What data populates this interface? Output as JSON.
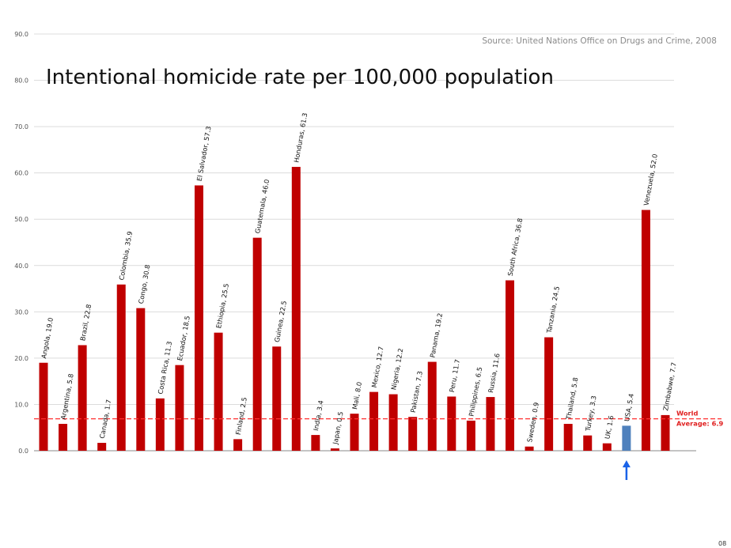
{
  "chart_data": {
    "type": "bar",
    "title": "Intentional homicide rate per 100,000 population",
    "source": "Source: United Nations Office on Drugs and Crime, 2008",
    "xlabel": "",
    "ylabel": "",
    "ylim": [
      0,
      90
    ],
    "yticks": [
      "0.0",
      "10.0",
      "20.0",
      "30.0",
      "40.0",
      "50.0",
      "60.0",
      "70.0",
      "80.0",
      "90.0"
    ],
    "grid": true,
    "categories": [
      "Angola",
      "Argentina",
      "Brazil",
      "Canada",
      "Colombia",
      "Congo",
      "Costa Rica",
      "Ecuador",
      "El Salvador",
      "Ethiopia",
      "Finland",
      "Guatemala",
      "Guinea",
      "Honduras",
      "India",
      "Japan",
      "Mali",
      "Mexico",
      "Nigeria",
      "Pakistan",
      "Panama",
      "Peru",
      "Philippines",
      "Russia",
      "South Africa",
      "Sweden",
      "Tanzania",
      "Thailand",
      "Turkey",
      "UK",
      "USA",
      "Venezuela",
      "Zimbabwe"
    ],
    "values": [
      19.0,
      5.8,
      22.8,
      1.7,
      35.9,
      30.8,
      11.3,
      18.5,
      57.3,
      25.5,
      2.5,
      46.0,
      22.5,
      61.3,
      3.4,
      0.5,
      8.0,
      12.7,
      12.2,
      7.3,
      19.2,
      11.7,
      6.5,
      11.6,
      36.8,
      0.9,
      24.5,
      5.8,
      3.3,
      1.6,
      5.4,
      52.0,
      7.7
    ],
    "labels": [
      "Angola, 19.0",
      "Argentina, 5.8",
      "Brazil, 22.8",
      "Canada, 1.7",
      "Colombia, 35.9",
      "Congo, 30.8",
      "Costa Rica, 11.3",
      "Ecuador, 18.5",
      "El Salvador, 57.3",
      "Ethiopia, 25.5",
      "Finland, 2.5",
      "Guatemala, 46.0",
      "Guinea, 22.5",
      "Honduras, 61.3",
      "India, 3.4",
      "Japan, 0.5",
      "Mali, 8.0",
      "Mexico, 12.7",
      "Nigeria, 12.2",
      "Pakistan, 7.3",
      "Panama, 19.2",
      "Peru, 11.7",
      "Philippines, 6.5",
      "Russia, 11.6",
      "South Africa, 36.8",
      "Sweden, 0.9",
      "Tanzania, 24.5",
      "Thailand, 5.8",
      "Turkey, 3.3",
      "UK, 1.6",
      "USA, 5.4",
      "Venezuela, 52.0",
      "Zimbabwe, 7.7"
    ],
    "highlight": "USA",
    "colors": {
      "bar": "#c00000",
      "highlight": "#4f81bd",
      "average_line": "#ff3030",
      "arrow": "#1a63e8"
    },
    "reference_line": {
      "value": 6.9,
      "label_line1": "World",
      "label_line2": "Average: 6.9"
    }
  },
  "page_number": "08"
}
